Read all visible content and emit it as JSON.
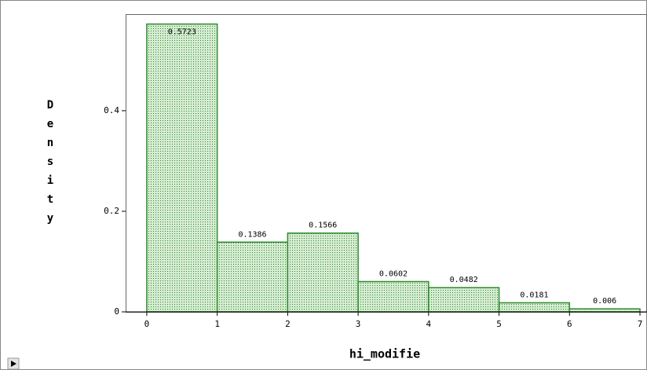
{
  "chart_data": {
    "type": "histogram",
    "bins": [
      0,
      1,
      2,
      3,
      4,
      5,
      6,
      7
    ],
    "values": [
      0.5723,
      0.1386,
      0.1566,
      0.0602,
      0.0482,
      0.0181,
      0.006
    ],
    "color": "#2e8b2e",
    "xlabel": "hi_modifie",
    "ylabel": "Density",
    "xlim": [
      -0.3,
      7.1
    ],
    "ylim": [
      0,
      0.592
    ],
    "xticks": [
      0,
      1,
      2,
      3,
      4,
      5,
      6,
      7
    ],
    "yticks": [
      0,
      0.2,
      0.4
    ]
  }
}
